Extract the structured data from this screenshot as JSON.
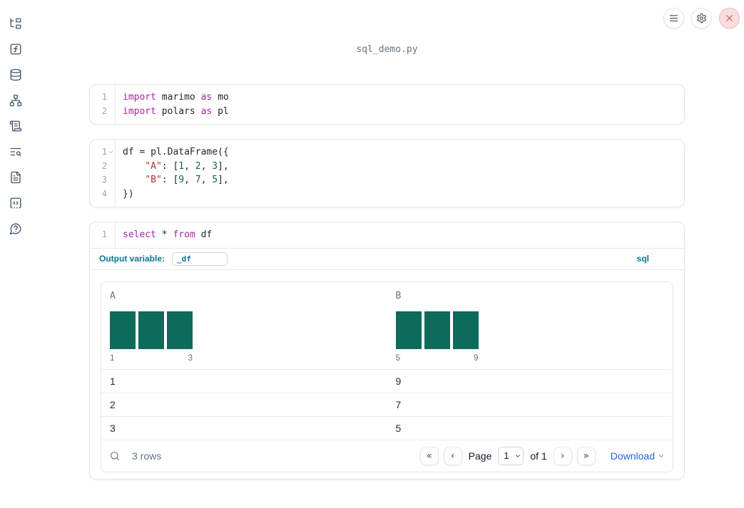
{
  "title": "sql_demo.py",
  "colors": {
    "accent_teal": "#0e7490",
    "keyword": "#a626a4",
    "string": "#a8362e",
    "number": "#116644",
    "plain_code": "#1f2430",
    "histogram_bar": "#0e6b5b",
    "link_blue": "#2563eb",
    "close_red": "#d24a4a",
    "close_bg": "#fadede"
  },
  "sidebar": {
    "items": [
      "file-tree",
      "function-square",
      "database",
      "network",
      "scroll-text",
      "list-search",
      "file-text",
      "code-square",
      "help-circle"
    ]
  },
  "topbar": {
    "buttons": [
      "menu",
      "settings",
      "close"
    ]
  },
  "cells": [
    {
      "id": "imports",
      "lines": [
        {
          "n": "1",
          "tokens": [
            {
              "c": "kw",
              "v": "import"
            },
            {
              "c": "pl",
              "v": " marimo "
            },
            {
              "c": "kw",
              "v": "as"
            },
            {
              "c": "pl",
              "v": " mo"
            }
          ]
        },
        {
          "n": "2",
          "tokens": [
            {
              "c": "kw",
              "v": "import"
            },
            {
              "c": "pl",
              "v": " polars "
            },
            {
              "c": "kw",
              "v": "as"
            },
            {
              "c": "pl",
              "v": " pl"
            }
          ]
        }
      ]
    },
    {
      "id": "dataframe",
      "lines": [
        {
          "n": "1",
          "fold": true,
          "tokens": [
            {
              "c": "pl",
              "v": "df = pl.DataFrame({"
            }
          ]
        },
        {
          "n": "2",
          "tokens": [
            {
              "c": "pl",
              "v": "    "
            },
            {
              "c": "str",
              "v": "\"A\""
            },
            {
              "c": "pl",
              "v": ": ["
            },
            {
              "c": "num",
              "v": "1"
            },
            {
              "c": "pl",
              "v": ", "
            },
            {
              "c": "num",
              "v": "2"
            },
            {
              "c": "pl",
              "v": ", "
            },
            {
              "c": "num",
              "v": "3"
            },
            {
              "c": "pl",
              "v": "],"
            }
          ]
        },
        {
          "n": "3",
          "tokens": [
            {
              "c": "pl",
              "v": "    "
            },
            {
              "c": "str",
              "v": "\"B\""
            },
            {
              "c": "pl",
              "v": ": ["
            },
            {
              "c": "num",
              "v": "9"
            },
            {
              "c": "pl",
              "v": ", "
            },
            {
              "c": "num",
              "v": "7"
            },
            {
              "c": "pl",
              "v": ", "
            },
            {
              "c": "num",
              "v": "5"
            },
            {
              "c": "pl",
              "v": "],"
            }
          ]
        },
        {
          "n": "4",
          "tokens": [
            {
              "c": "pl",
              "v": "})"
            }
          ]
        }
      ]
    },
    {
      "id": "sql",
      "lines": [
        {
          "n": "1",
          "tokens": [
            {
              "c": "kw",
              "v": "select"
            },
            {
              "c": "pl",
              "v": " * "
            },
            {
              "c": "kw",
              "v": "from"
            },
            {
              "c": "pl",
              "v": " df"
            }
          ]
        }
      ]
    }
  ],
  "sql_cell": {
    "output_variable_label": "Output variable:",
    "output_variable_value": "_df",
    "language": "sql"
  },
  "table": {
    "columns": [
      {
        "name": "A",
        "hist_min": "1",
        "hist_max": "3",
        "bars": [
          1,
          1,
          1
        ]
      },
      {
        "name": "B",
        "hist_min": "5",
        "hist_max": "9",
        "bars": [
          1,
          1,
          1
        ]
      }
    ],
    "rows": [
      [
        "1",
        "9"
      ],
      [
        "2",
        "7"
      ],
      [
        "3",
        "5"
      ]
    ],
    "row_count": "3 rows",
    "pager": {
      "first_icon": "«",
      "prev_icon": "‹",
      "page_label": "Page",
      "page_value": "1",
      "page_options": [
        "1"
      ],
      "of_label": "of 1",
      "next_icon": "›",
      "last_icon": "»",
      "download_label": "Download"
    }
  }
}
